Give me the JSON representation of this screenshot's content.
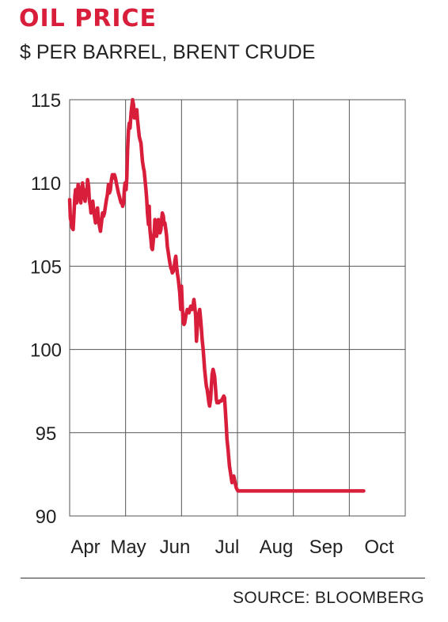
{
  "chart_data": {
    "type": "line",
    "title": "OIL PRICE",
    "subtitle": "$ PER BARREL, BRENT CRUDE",
    "source": "SOURCE: BLOOMBERG",
    "ylim": [
      90,
      115
    ],
    "yticks": [
      115,
      110,
      105,
      100,
      95,
      90
    ],
    "xticks": [
      "Apr",
      "May",
      "Jun",
      "Jul",
      "Aug",
      "Sep",
      "Oct"
    ],
    "grid": true,
    "line_color": "#d81e3a",
    "series": [
      {
        "x": [
          0,
          0.03,
          0.07,
          0.1,
          0.14,
          0.17,
          0.21,
          0.24,
          0.28,
          0.31,
          0.34,
          0.38,
          0.41,
          0.45,
          0.48,
          0.52,
          0.55,
          0.59,
          0.62,
          0.66,
          0.69,
          0.72,
          0.76,
          0.79,
          0.83,
          0.86,
          0.9,
          0.93,
          0.97,
          1.0,
          1.04,
          1.08,
          1.12,
          1.16,
          1.2,
          1.24,
          1.28,
          1.32,
          1.36,
          1.4,
          1.44,
          1.48,
          1.52,
          1.56,
          1.6,
          1.64,
          1.68,
          1.72,
          1.76,
          1.8,
          1.84,
          1.88,
          1.92,
          1.96,
          2.0,
          2.03,
          2.07,
          2.1,
          2.13,
          2.17,
          2.2,
          2.23,
          2.27,
          2.3,
          2.33,
          2.37,
          2.4,
          2.43,
          2.47,
          2.5,
          2.53,
          2.57,
          2.6,
          2.63,
          2.67,
          2.7,
          2.73,
          2.77,
          2.8,
          2.83,
          2.87,
          2.9,
          2.93,
          2.97,
          3.0,
          3.03,
          3.07,
          3.1,
          3.13,
          3.17,
          3.2,
          3.23,
          3.27,
          3.3,
          3.33,
          3.37,
          3.4,
          3.43,
          3.47,
          3.5,
          3.53,
          3.57,
          3.6,
          3.63,
          3.67,
          3.7,
          3.73,
          3.77,
          3.8,
          3.83,
          3.87,
          3.9,
          3.93,
          3.97,
          4.0,
          4.03,
          4.07,
          4.1,
          4.13,
          4.17,
          4.2,
          4.23,
          4.27,
          4.3,
          4.33,
          4.37,
          4.4,
          4.43,
          4.47,
          4.5,
          4.53,
          4.57,
          4.6,
          4.63,
          4.67,
          4.7,
          4.73,
          4.77,
          4.8,
          4.83,
          4.87,
          4.9,
          4.93,
          4.97,
          5.0,
          5.03,
          5.07,
          5.1,
          5.13,
          5.17,
          5.2,
          5.23,
          5.27,
          5.3,
          5.33,
          5.37,
          5.4,
          5.43,
          5.47,
          5.5,
          5.53,
          5.57,
          5.6,
          5.63,
          5.67,
          5.7,
          5.73,
          5.77,
          5.8,
          5.83,
          5.87,
          5.9,
          5.93,
          5.97,
          6.0,
          6.03,
          6.07,
          6.1,
          6.13,
          6.17,
          6.2,
          6.23,
          6.27,
          6.3,
          6.33,
          6.37,
          6.4,
          6.43,
          6.47,
          6.5,
          6.53,
          6.57,
          6.6,
          6.63,
          6.67,
          6.7,
          6.73,
          6.77,
          6.8,
          6.83,
          6.87,
          6.9,
          6.93,
          6.97,
          7.0,
          7.03,
          7.07,
          7.1,
          7.13,
          7.17,
          7.2,
          7.23,
          7.27,
          7.3,
          7.33,
          7.37,
          7.4,
          7.43,
          7.47,
          7.5,
          7.53,
          7.57,
          7.6,
          7.63,
          7.67,
          7.7,
          7.73,
          7.77,
          7.8,
          7.83,
          7.87,
          7.9,
          7.93,
          7.97,
          8.0,
          8.03,
          8.07,
          8.1,
          8.13,
          8.17,
          8.2,
          8.23,
          8.27,
          8.3,
          8.33,
          8.37,
          8.4,
          8.43,
          8.47,
          8.5,
          8.53,
          8.57,
          8.6,
          8.63,
          8.67,
          8.7,
          8.73,
          8.77,
          8.8,
          8.83,
          8.87,
          8.9,
          8.93,
          8.97,
          9.0,
          9.03,
          9.07,
          9.1,
          9.13,
          9.17,
          9.2,
          9.23,
          9.27,
          9.3,
          9.33,
          9.37,
          9.4,
          9.43,
          9.47,
          9.5,
          9.53,
          9.57,
          9.6,
          9.63,
          9.67,
          9.7,
          9.73,
          9.77,
          9.8,
          9.83,
          9.87,
          9.9,
          9.93,
          9.97,
          10.0,
          10.03,
          10.07,
          10.1,
          10.13,
          10.17,
          10.2,
          10.23,
          10.27,
          10.3,
          10.33,
          10.37,
          10.4,
          10.43,
          10.47,
          10.5,
          10.53,
          10.57,
          10.6,
          10.63,
          10.67,
          10.7,
          10.73,
          10.77,
          10.8,
          10.83,
          10.87,
          10.9,
          10.93,
          10.97,
          11.0,
          11.03,
          11.07,
          11.1,
          11.13,
          11.17,
          11.2,
          11.23,
          11.27,
          11.3,
          11.33,
          11.37,
          11.4,
          11.43,
          11.47,
          11.5,
          11.53,
          11.57,
          11.6,
          11.63,
          11.67,
          11.7,
          11.73,
          11.77,
          11.8,
          11.83
        ],
        "y": [
          109.0,
          107.9,
          107.6,
          107.3,
          107.2,
          108.0,
          109.2,
          109.6,
          108.8,
          109.3,
          109.9,
          109.5,
          109.0,
          108.8,
          109.6,
          110.0,
          109.5,
          109.1,
          108.9,
          109.6,
          109.3,
          110.2,
          109.8,
          109.0,
          108.6,
          108.2,
          108.4,
          108.9,
          108.3,
          108.0,
          107.6,
          108.2,
          108.5,
          107.8,
          107.4,
          107.1,
          107.6,
          108.2,
          108.0,
          108.2,
          108.6,
          109.0,
          109.3,
          109.9,
          109.4,
          109.6,
          110.2,
          110.5,
          110.3,
          110.5,
          110.3,
          110.0,
          109.7,
          109.4,
          109.2,
          109.0,
          108.8,
          108.9,
          108.6,
          108.8,
          109.6,
          110.0,
          109.6,
          110.3,
          112.0,
          113.2,
          113.6,
          113.3,
          114.2,
          114.6,
          115.0,
          114.7,
          113.9,
          114.3,
          113.9,
          114.4,
          113.8,
          113.2,
          112.8,
          112.6,
          112.4,
          111.8,
          111.3,
          110.9,
          110.7,
          110.2,
          109.6,
          109.0,
          108.2,
          107.5,
          108.6,
          107.2,
          106.6,
          106.1,
          106.0,
          106.6,
          107.0,
          107.8,
          107.4,
          106.8,
          107.3,
          107.8,
          107.4,
          107.0,
          107.2,
          107.8,
          108.2,
          108.0,
          107.5,
          107.6,
          107.2,
          106.8,
          106.2,
          105.8,
          105.5,
          105.2,
          104.9,
          104.8,
          104.6,
          104.7,
          104.9,
          105.3,
          105.6,
          105.0,
          104.6,
          104.2,
          103.8,
          103.4,
          102.4,
          103.8,
          102.6,
          101.6,
          101.5,
          101.6,
          102.0,
          102.2,
          102.4,
          102.3,
          102.2,
          102.4,
          102.6,
          102.5,
          102.4,
          102.7,
          103.0,
          102.6,
          102.0,
          100.5,
          101.2,
          101.8,
          102.2,
          102.4,
          101.8,
          101.2,
          100.6,
          100.0,
          99.4,
          98.8,
          98.2,
          97.8,
          97.6,
          97.2,
          96.8,
          96.6,
          97.0,
          97.8,
          98.5,
          98.8,
          98.6,
          98.4,
          97.6,
          97.0,
          96.8,
          96.8,
          96.8,
          96.9,
          96.9,
          96.9,
          97.0,
          97.1,
          97.2,
          97.1,
          96.2,
          95.4,
          94.6,
          94.0,
          93.5,
          93.0,
          92.6,
          92.3,
          92.0,
          92.2,
          92.4,
          92.2,
          91.9,
          91.7,
          91.6,
          91.5,
          91.5,
          91.5,
          91.5,
          91.5,
          91.5,
          91.5,
          91.5,
          91.5,
          91.5,
          91.5,
          91.5,
          91.5,
          91.5,
          91.5,
          91.5,
          91.5,
          91.5,
          91.5,
          91.5,
          91.5,
          91.5,
          91.5,
          91.5,
          91.5,
          91.5,
          91.5,
          91.5,
          91.5,
          91.5,
          91.5,
          91.5,
          91.5,
          91.5,
          91.5,
          91.5,
          91.5,
          91.5,
          91.5,
          91.5,
          91.5,
          91.5,
          91.5,
          91.5,
          91.5,
          91.5,
          91.5,
          91.5,
          91.5,
          91.5,
          91.5,
          91.5,
          91.5,
          91.5,
          91.5,
          91.5,
          91.5,
          91.5,
          91.5,
          91.5,
          91.5,
          91.5,
          91.5,
          91.5,
          91.5,
          91.5,
          91.5,
          91.5,
          91.5,
          91.5,
          91.5,
          91.5,
          91.5,
          91.5,
          91.5,
          91.5,
          91.5,
          91.5,
          91.5,
          91.5,
          91.5,
          91.5,
          91.5,
          91.5,
          91.5,
          91.5,
          91.5,
          91.5,
          91.5,
          91.5,
          91.5,
          91.5,
          91.5,
          91.5,
          91.5,
          91.5,
          91.5,
          91.5,
          91.5,
          91.5,
          91.5,
          91.5,
          91.5,
          91.5,
          91.5,
          91.5,
          91.5,
          91.5,
          91.5,
          91.5,
          91.5,
          91.5,
          91.5,
          91.5,
          91.5,
          91.5,
          91.5,
          91.5,
          91.5,
          91.5,
          91.5,
          91.5,
          91.5,
          91.5,
          91.5,
          91.5,
          91.5,
          91.5,
          91.5,
          91.5,
          91.5,
          91.5,
          91.5,
          91.5,
          91.5,
          91.5,
          91.5,
          91.5,
          91.5,
          91.5,
          91.5,
          91.5,
          91.5,
          91.5,
          91.5,
          91.5,
          91.5,
          91.5,
          91.5,
          91.5,
          91.5,
          91.5,
          91.5
        ]
      }
    ]
  }
}
